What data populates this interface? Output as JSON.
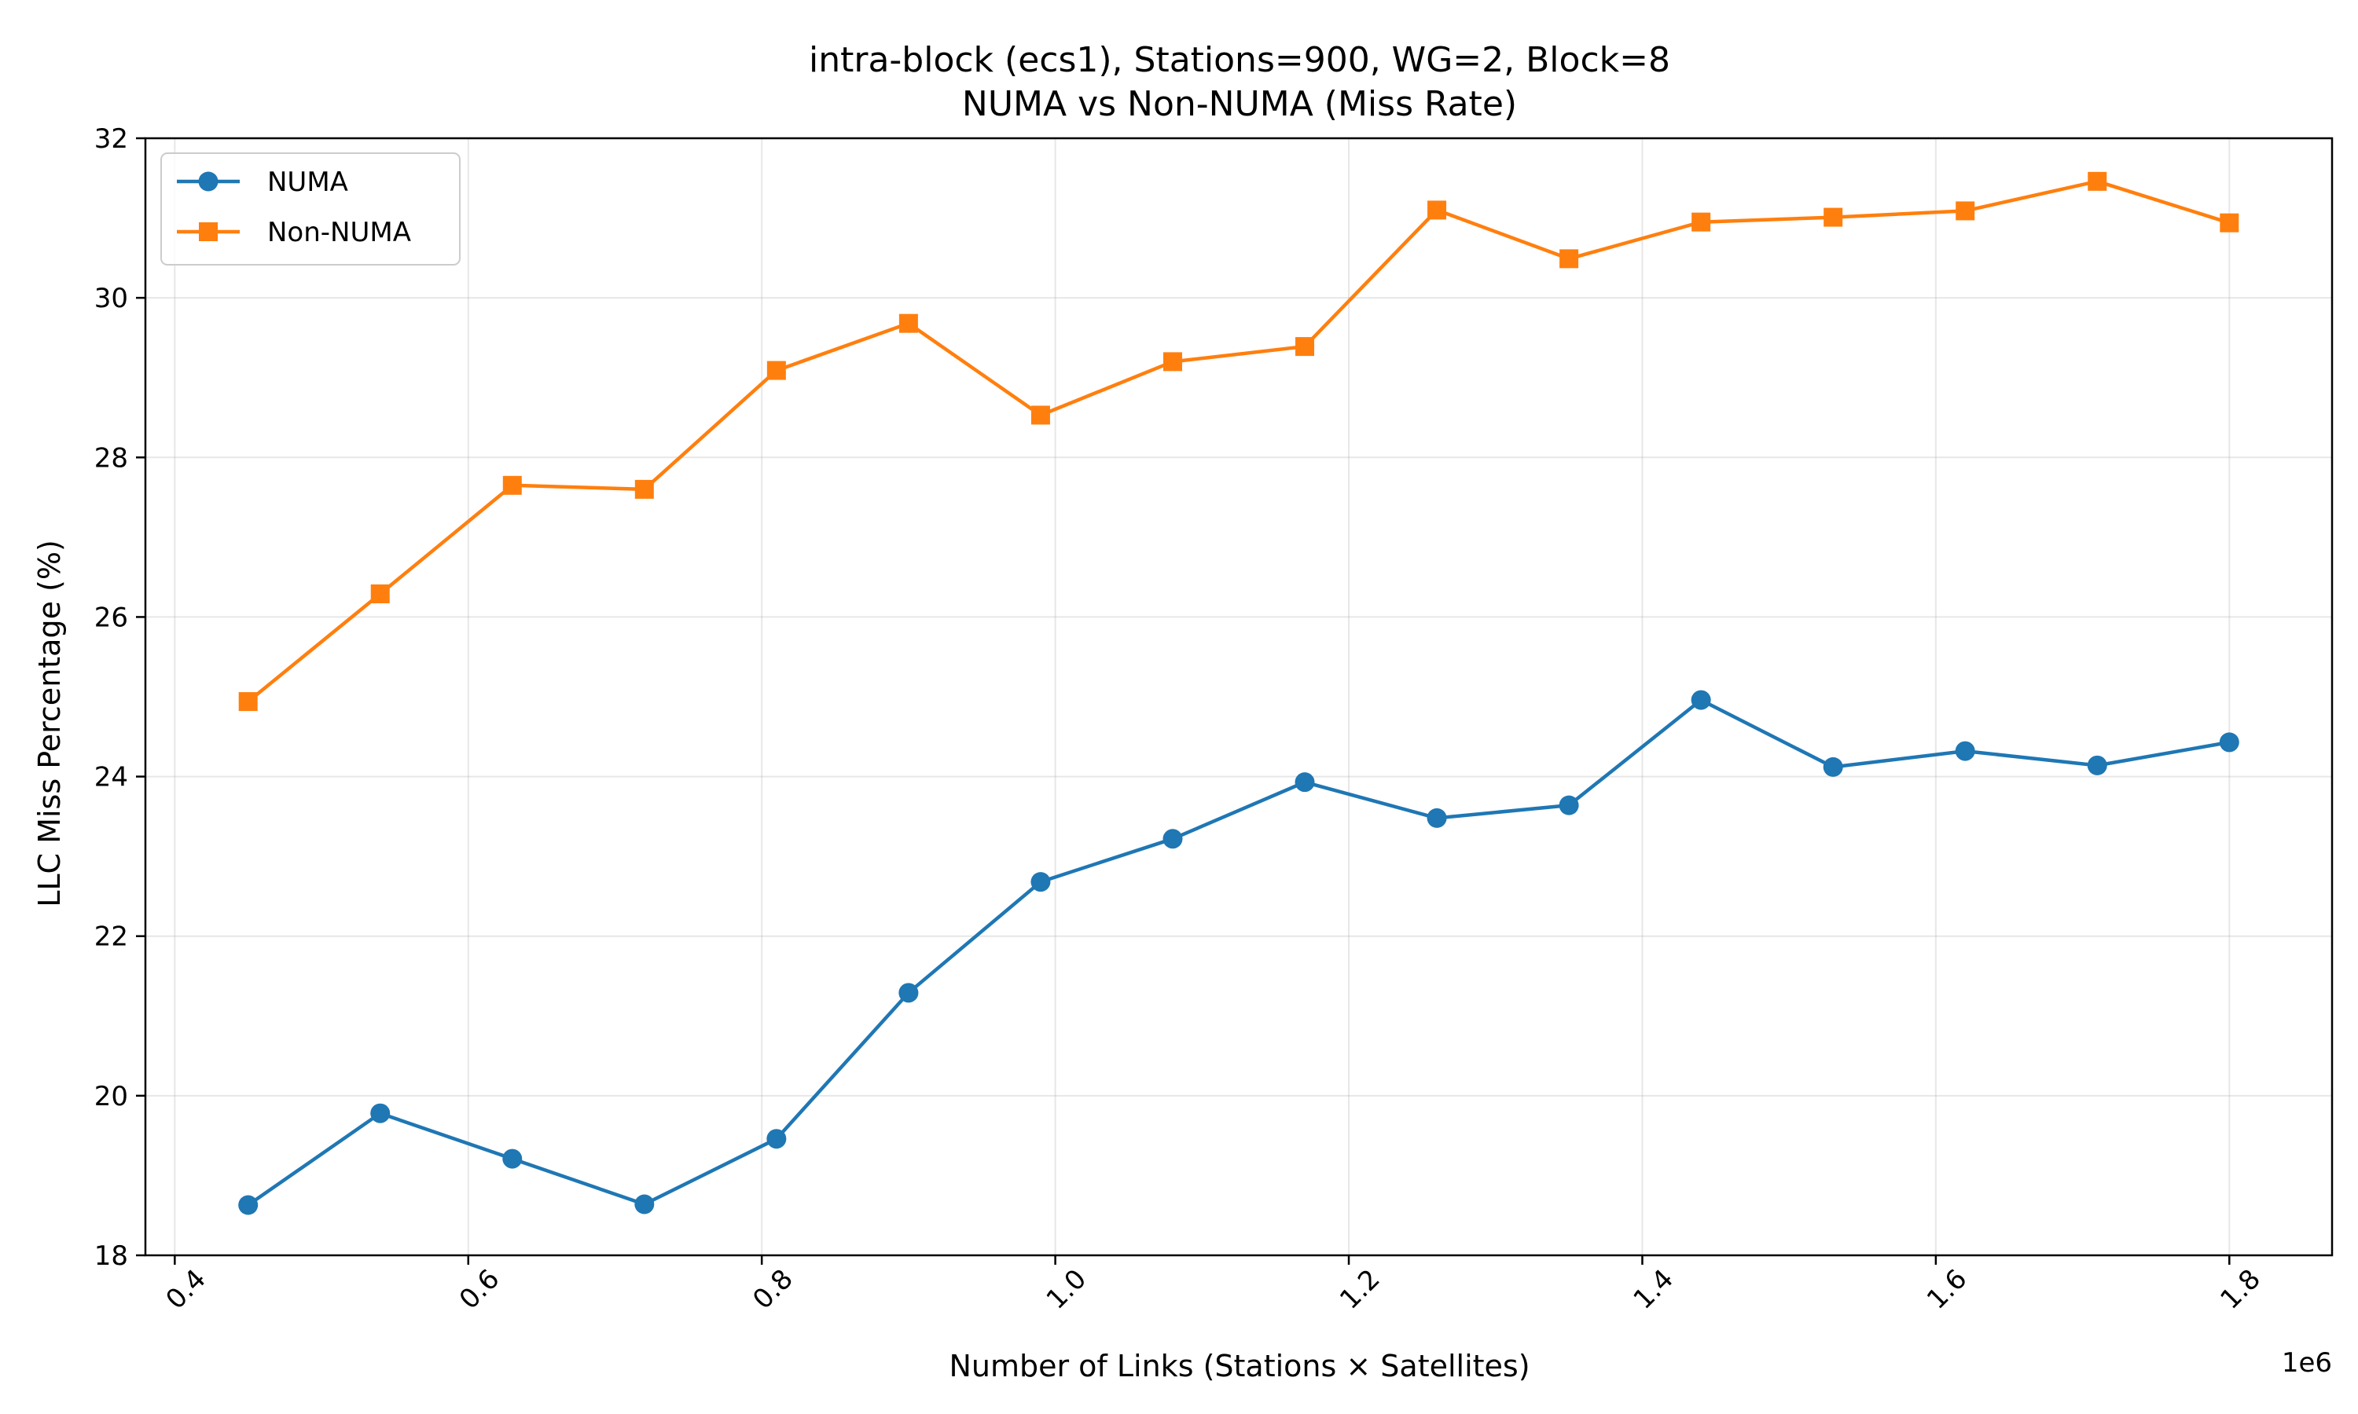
{
  "chart_data": {
    "type": "line",
    "title": "intra-block (ecs1), Stations=900, WG=2, Block=8",
    "subtitle": "NUMA vs Non-NUMA (Miss Rate)",
    "xlabel": "Number of Links (Stations × Satellites)",
    "ylabel": "LLC Miss Percentage (%)",
    "x_offset_label": "1e6",
    "xlim": [
      0.38,
      1.87
    ],
    "ylim": [
      18,
      32
    ],
    "x_ticks": [
      0.4,
      0.6,
      0.8,
      1.0,
      1.2,
      1.4,
      1.6,
      1.8
    ],
    "x_tick_labels": [
      "0.4",
      "0.6",
      "0.8",
      "1.0",
      "1.2",
      "1.4",
      "1.6",
      "1.8"
    ],
    "y_ticks": [
      18,
      20,
      22,
      24,
      26,
      28,
      30,
      32
    ],
    "y_tick_labels": [
      "18",
      "20",
      "22",
      "24",
      "26",
      "28",
      "30",
      "32"
    ],
    "grid": true,
    "legend_position": "top-left",
    "x": [
      0.45,
      0.54,
      0.63,
      0.72,
      0.81,
      0.9,
      0.99,
      1.08,
      1.17,
      1.26,
      1.35,
      1.44,
      1.53,
      1.62,
      1.71,
      1.8
    ],
    "series": [
      {
        "name": "NUMA",
        "color": "#1f77b4",
        "marker": "circle",
        "values": [
          18.63,
          19.78,
          19.21,
          18.64,
          19.46,
          21.29,
          22.68,
          23.22,
          23.93,
          23.48,
          23.64,
          24.96,
          24.12,
          24.32,
          24.14,
          24.43
        ]
      },
      {
        "name": "Non-NUMA",
        "color": "#ff7f0e",
        "marker": "square",
        "values": [
          24.94,
          26.29,
          27.65,
          27.6,
          29.09,
          29.68,
          28.53,
          29.2,
          29.39,
          31.1,
          30.49,
          30.95,
          31.01,
          31.09,
          31.46,
          30.94
        ]
      }
    ]
  }
}
